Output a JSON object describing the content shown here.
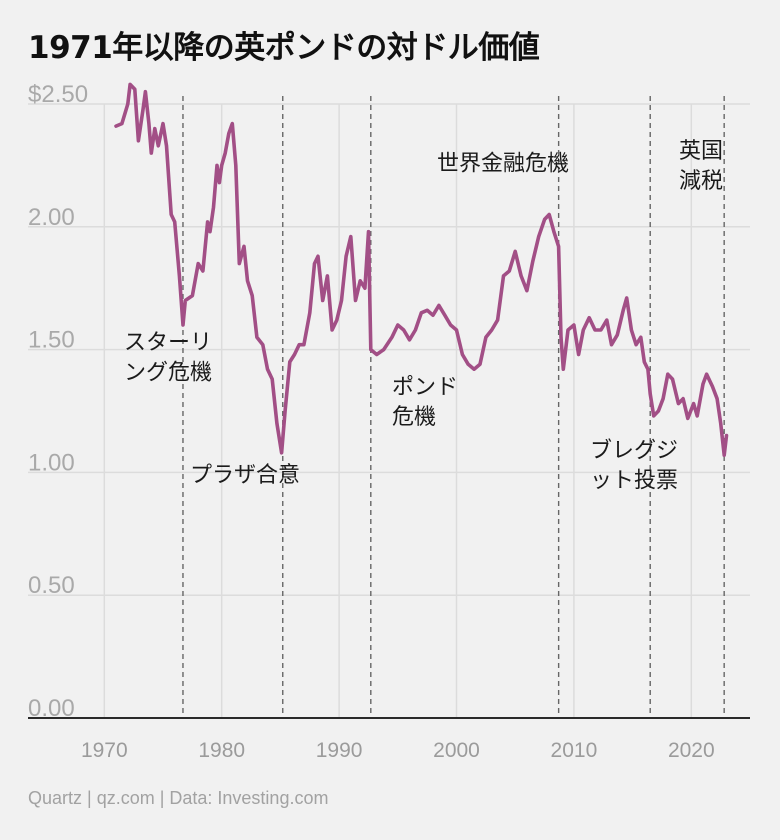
{
  "title": "1971年以降の英ポンドの対ドル価値",
  "footer": "Quartz | qz.com | Data: Investing.com",
  "colors": {
    "line": "#a24f86",
    "grid": "#dcdcdc",
    "event": "#666666",
    "axis": "#2a2a2a"
  },
  "chart_data": {
    "type": "line",
    "title": "1971年以降の英ポンドの対ドル価値",
    "xlabel": "",
    "ylabel": "",
    "xlim": [
      1963.5,
      2025
    ],
    "ylim": [
      0,
      2.5
    ],
    "grid": true,
    "y_ticks": [
      {
        "value": 2.5,
        "label": "$2.50"
      },
      {
        "value": 2.0,
        "label": "2.00"
      },
      {
        "value": 1.5,
        "label": "1.50"
      },
      {
        "value": 1.0,
        "label": "1.00"
      },
      {
        "value": 0.5,
        "label": "0.50"
      },
      {
        "value": 0.0,
        "label": "0.00"
      }
    ],
    "x_ticks": [
      {
        "value": 1970,
        "label": "1970"
      },
      {
        "value": 1980,
        "label": "1980"
      },
      {
        "value": 1990,
        "label": "1990"
      },
      {
        "value": 2000,
        "label": "2000"
      },
      {
        "value": 2010,
        "label": "2010"
      },
      {
        "value": 2020,
        "label": "2020"
      }
    ],
    "events": [
      {
        "x": 1976.7,
        "label_lines": [
          "スターリ",
          "ング危機"
        ],
        "label_side": "left",
        "label_y": 1.5
      },
      {
        "x": 1985.2,
        "label_lines": [
          "プラザ合意"
        ],
        "label_side": "left",
        "label_y": 0.96
      },
      {
        "x": 1992.7,
        "label_lines": [
          "ポンド",
          "危機"
        ],
        "label_side": "right",
        "label_y": 1.32
      },
      {
        "x": 2008.7,
        "label_lines": [
          "世界金融危機"
        ],
        "label_side": "left",
        "label_y": 2.23
      },
      {
        "x": 2016.5,
        "label_lines": [
          "ブレグジ",
          "ット投票"
        ],
        "label_side": "left",
        "label_y": 1.06
      },
      {
        "x": 2022.8,
        "label_lines": [
          "英国",
          "減税"
        ],
        "label_side": "left",
        "label_y": 2.28
      }
    ],
    "series": [
      {
        "points": [
          [
            1971.0,
            2.41
          ],
          [
            1971.5,
            2.42
          ],
          [
            1972.0,
            2.5
          ],
          [
            1972.2,
            2.58
          ],
          [
            1972.6,
            2.56
          ],
          [
            1972.9,
            2.35
          ],
          [
            1973.3,
            2.48
          ],
          [
            1973.5,
            2.55
          ],
          [
            1973.8,
            2.42
          ],
          [
            1974.0,
            2.3
          ],
          [
            1974.3,
            2.4
          ],
          [
            1974.6,
            2.33
          ],
          [
            1975.0,
            2.42
          ],
          [
            1975.3,
            2.33
          ],
          [
            1975.7,
            2.05
          ],
          [
            1976.0,
            2.02
          ],
          [
            1976.4,
            1.8
          ],
          [
            1976.7,
            1.6
          ],
          [
            1976.9,
            1.7
          ],
          [
            1977.5,
            1.72
          ],
          [
            1978.0,
            1.85
          ],
          [
            1978.4,
            1.82
          ],
          [
            1978.8,
            2.02
          ],
          [
            1979.0,
            1.98
          ],
          [
            1979.3,
            2.08
          ],
          [
            1979.6,
            2.25
          ],
          [
            1979.8,
            2.18
          ],
          [
            1980.0,
            2.25
          ],
          [
            1980.3,
            2.3
          ],
          [
            1980.6,
            2.38
          ],
          [
            1980.9,
            2.42
          ],
          [
            1981.2,
            2.25
          ],
          [
            1981.5,
            1.85
          ],
          [
            1981.9,
            1.92
          ],
          [
            1982.2,
            1.78
          ],
          [
            1982.6,
            1.72
          ],
          [
            1983.0,
            1.55
          ],
          [
            1983.5,
            1.52
          ],
          [
            1983.9,
            1.42
          ],
          [
            1984.3,
            1.38
          ],
          [
            1984.7,
            1.2
          ],
          [
            1985.1,
            1.08
          ],
          [
            1985.4,
            1.25
          ],
          [
            1985.8,
            1.45
          ],
          [
            1986.2,
            1.48
          ],
          [
            1986.6,
            1.52
          ],
          [
            1987.0,
            1.52
          ],
          [
            1987.5,
            1.65
          ],
          [
            1987.9,
            1.85
          ],
          [
            1988.2,
            1.88
          ],
          [
            1988.6,
            1.7
          ],
          [
            1989.0,
            1.8
          ],
          [
            1989.4,
            1.58
          ],
          [
            1989.8,
            1.62
          ],
          [
            1990.2,
            1.7
          ],
          [
            1990.6,
            1.88
          ],
          [
            1991.0,
            1.96
          ],
          [
            1991.4,
            1.7
          ],
          [
            1991.8,
            1.78
          ],
          [
            1992.2,
            1.75
          ],
          [
            1992.5,
            1.98
          ],
          [
            1992.7,
            1.5
          ],
          [
            1993.2,
            1.48
          ],
          [
            1993.8,
            1.5
          ],
          [
            1994.5,
            1.55
          ],
          [
            1995.0,
            1.6
          ],
          [
            1995.5,
            1.58
          ],
          [
            1996.0,
            1.54
          ],
          [
            1996.5,
            1.58
          ],
          [
            1997.0,
            1.65
          ],
          [
            1997.5,
            1.66
          ],
          [
            1998.0,
            1.64
          ],
          [
            1998.5,
            1.68
          ],
          [
            1999.0,
            1.64
          ],
          [
            1999.5,
            1.6
          ],
          [
            2000.0,
            1.58
          ],
          [
            2000.5,
            1.48
          ],
          [
            2001.0,
            1.44
          ],
          [
            2001.5,
            1.42
          ],
          [
            2002.0,
            1.44
          ],
          [
            2002.5,
            1.55
          ],
          [
            2003.0,
            1.58
          ],
          [
            2003.5,
            1.62
          ],
          [
            2004.0,
            1.8
          ],
          [
            2004.5,
            1.82
          ],
          [
            2005.0,
            1.9
          ],
          [
            2005.5,
            1.8
          ],
          [
            2006.0,
            1.74
          ],
          [
            2006.5,
            1.86
          ],
          [
            2007.0,
            1.96
          ],
          [
            2007.5,
            2.03
          ],
          [
            2007.9,
            2.05
          ],
          [
            2008.3,
            1.98
          ],
          [
            2008.7,
            1.92
          ],
          [
            2008.9,
            1.55
          ],
          [
            2009.1,
            1.42
          ],
          [
            2009.5,
            1.58
          ],
          [
            2010.0,
            1.6
          ],
          [
            2010.4,
            1.48
          ],
          [
            2010.8,
            1.58
          ],
          [
            2011.3,
            1.63
          ],
          [
            2011.8,
            1.58
          ],
          [
            2012.3,
            1.58
          ],
          [
            2012.8,
            1.62
          ],
          [
            2013.2,
            1.52
          ],
          [
            2013.7,
            1.56
          ],
          [
            2014.2,
            1.66
          ],
          [
            2014.5,
            1.71
          ],
          [
            2014.9,
            1.58
          ],
          [
            2015.3,
            1.52
          ],
          [
            2015.7,
            1.55
          ],
          [
            2016.0,
            1.45
          ],
          [
            2016.3,
            1.42
          ],
          [
            2016.5,
            1.32
          ],
          [
            2016.8,
            1.23
          ],
          [
            2017.2,
            1.25
          ],
          [
            2017.6,
            1.3
          ],
          [
            2018.0,
            1.4
          ],
          [
            2018.4,
            1.38
          ],
          [
            2018.9,
            1.28
          ],
          [
            2019.3,
            1.3
          ],
          [
            2019.7,
            1.22
          ],
          [
            2020.2,
            1.28
          ],
          [
            2020.5,
            1.23
          ],
          [
            2021.0,
            1.36
          ],
          [
            2021.3,
            1.4
          ],
          [
            2021.8,
            1.35
          ],
          [
            2022.2,
            1.3
          ],
          [
            2022.5,
            1.2
          ],
          [
            2022.8,
            1.07
          ],
          [
            2023.0,
            1.15
          ]
        ]
      }
    ]
  }
}
